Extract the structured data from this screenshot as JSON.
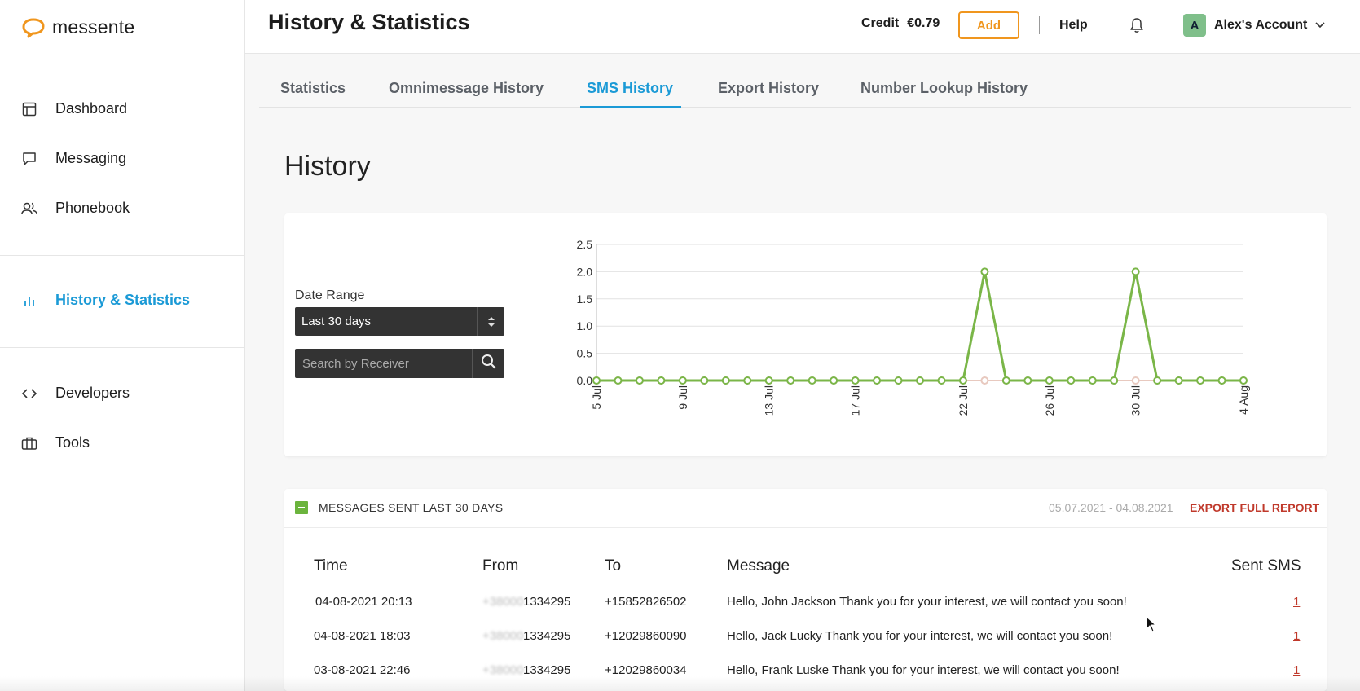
{
  "brand": {
    "name": "messente",
    "color": "#f0961e"
  },
  "sidebar": {
    "items": [
      {
        "label": "Dashboard",
        "icon": "layout-icon"
      },
      {
        "label": "Messaging",
        "icon": "chat-bubble-icon"
      },
      {
        "label": "Phonebook",
        "icon": "users-icon"
      },
      {
        "label": "History & Statistics",
        "icon": "bar-chart-icon",
        "active": true
      },
      {
        "label": "Developers",
        "icon": "code-icon"
      },
      {
        "label": "Tools",
        "icon": "briefcase-icon"
      }
    ]
  },
  "header": {
    "title": "History & Statistics",
    "credit_label": "Credit",
    "credit_amount": "€0.79",
    "add_label": "Add",
    "help_label": "Help",
    "account_initial": "A",
    "account_name": "Alex's Account"
  },
  "tabs": [
    {
      "label": "Statistics"
    },
    {
      "label": "Omnimessage History"
    },
    {
      "label": "SMS History",
      "active": true
    },
    {
      "label": "Export History"
    },
    {
      "label": "Number Lookup History"
    }
  ],
  "history": {
    "title": "History",
    "date_range_label": "Date Range",
    "date_range_value": "Last 30 days",
    "search_placeholder": "Search by Receiver"
  },
  "chart_data": {
    "type": "line",
    "ylim": [
      0,
      2.5
    ],
    "y_ticks": [
      "0.0",
      "0.5",
      "1.0",
      "1.5",
      "2.0",
      "2.5"
    ],
    "x_tick_labels": [
      "5 Jul",
      "9 Jul",
      "13 Jul",
      "17 Jul",
      "22 Jul",
      "26 Jul",
      "30 Jul",
      "4 Aug"
    ],
    "x": [
      "5 Jul",
      "6 Jul",
      "7 Jul",
      "8 Jul",
      "9 Jul",
      "10 Jul",
      "11 Jul",
      "12 Jul",
      "13 Jul",
      "14 Jul",
      "15 Jul",
      "16 Jul",
      "17 Jul",
      "18 Jul",
      "19 Jul",
      "20 Jul",
      "21 Jul",
      "22 Jul",
      "23 Jul",
      "24 Jul",
      "25 Jul",
      "26 Jul",
      "27 Jul",
      "28 Jul",
      "29 Jul",
      "30 Jul",
      "31 Jul",
      "1 Aug",
      "2 Aug",
      "3 Aug",
      "4 Aug"
    ],
    "series": [
      {
        "color": "#e8c9bf",
        "values": [
          0,
          0,
          0,
          0,
          0,
          0,
          0,
          0,
          0,
          0,
          0,
          0,
          0,
          0,
          0,
          0,
          0,
          0,
          0,
          0,
          0,
          0,
          0,
          0,
          0,
          0,
          0,
          0,
          0,
          0,
          0
        ]
      },
      {
        "color": "#7ab648",
        "values": [
          0,
          0,
          0,
          0,
          0,
          0,
          0,
          0,
          0,
          0,
          0,
          0,
          0,
          0,
          0,
          0,
          0,
          0,
          2,
          0,
          0,
          0,
          0,
          0,
          0,
          2,
          0,
          0,
          0,
          0,
          0
        ]
      }
    ],
    "grid": true
  },
  "messages": {
    "title": "MESSAGES SENT LAST 30 DAYS",
    "range": "05.07.2021 - 04.08.2021",
    "export_label": "EXPORT FULL REPORT",
    "columns": [
      "Time",
      "From",
      "To",
      "Message",
      "Sent SMS"
    ],
    "rows": [
      {
        "time": "04-08-2021 20:13",
        "from_hidden": "+38000",
        "from": "1334295",
        "to": "+15852826502",
        "message": "Hello, John Jackson Thank you for your interest, we will contact you soon!",
        "sent": "1"
      },
      {
        "time": "04-08-2021 18:03",
        "from_hidden": "+38000",
        "from": "1334295",
        "to": "+12029860090",
        "message": "Hello, Jack Lucky Thank you for your interest, we will contact you soon!",
        "sent": "1"
      },
      {
        "time": "03-08-2021 22:46",
        "from_hidden": "+38000",
        "from": "1334295",
        "to": "+12029860034",
        "message": "Hello, Frank Luske Thank you for your interest, we will contact you soon!",
        "sent": "1"
      }
    ]
  }
}
